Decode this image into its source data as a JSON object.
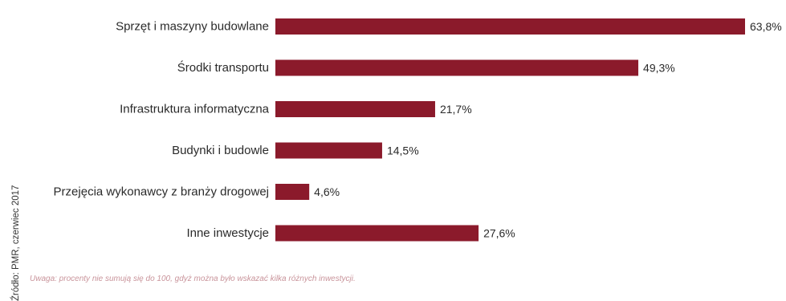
{
  "chart_data": {
    "type": "bar",
    "orientation": "horizontal",
    "categories": [
      "Sprzęt i maszyny budowlane",
      "Środki transportu",
      "Infrastruktura informatyczna",
      "Budynki i budowle",
      "Przejęcia wykonawcy z branży drogowej",
      "Inne inwestycje"
    ],
    "values": [
      63.8,
      49.3,
      21.7,
      14.5,
      4.6,
      27.6
    ],
    "value_labels": [
      "63,8%",
      "49,3%",
      "21,7%",
      "14,5%",
      "4,6%",
      "27,6%"
    ],
    "unit": "%",
    "xlim": [
      0,
      63.8
    ],
    "bar_color": "#8b1a2b",
    "grid": false,
    "legend": "none"
  },
  "source": "Źródło: PMR, czerwiec 2017",
  "note": "Uwaga: procenty nie sumują się do 100, gdyż można było wskazać kilka różnych inwestycji."
}
